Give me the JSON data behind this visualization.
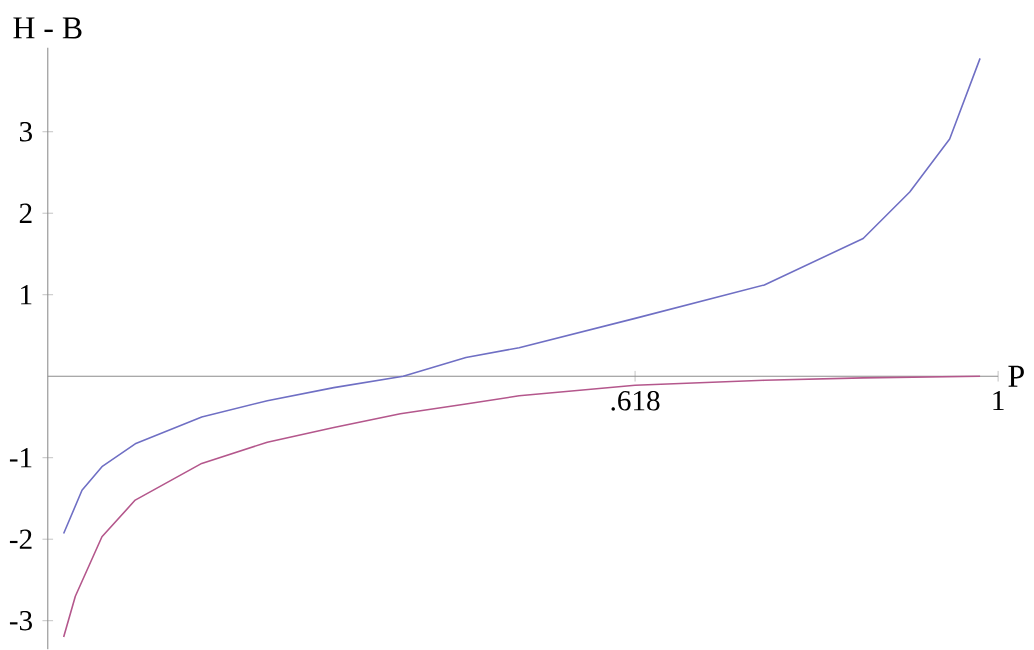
{
  "chart_data": {
    "type": "line",
    "xlabel": "P",
    "ylabel": "H - B",
    "xlim": [
      0,
      1
    ],
    "ylim": [
      -3.35,
      4.03
    ],
    "xticks": [
      {
        "value": 0.618,
        "label": ".618"
      },
      1
    ],
    "yticks": [
      -3,
      -2,
      -1,
      1,
      2,
      3
    ],
    "line_style": "solid",
    "marker": "none",
    "series": [
      {
        "color": "#6f6fc4",
        "x": [
          0.0167,
          0.036,
          0.057,
          0.092,
          0.162,
          0.231,
          0.301,
          0.374,
          0.44,
          0.496,
          0.618,
          0.754,
          0.858,
          0.907,
          0.949,
          0.981
        ],
        "values": [
          -1.93,
          -1.4,
          -1.11,
          -0.83,
          -0.5,
          -0.3,
          -0.14,
          0,
          0.23,
          0.35,
          0.71,
          1.12,
          1.69,
          2.26,
          2.91,
          3.9
        ]
      },
      {
        "color": "#b4578c",
        "x": [
          0.0167,
          0.029,
          0.057,
          0.092,
          0.162,
          0.231,
          0.301,
          0.371,
          0.44,
          0.496,
          0.618,
          0.754,
          0.858,
          0.981
        ],
        "values": [
          -3.2,
          -2.7,
          -1.97,
          -1.52,
          -1.07,
          -0.81,
          -0.63,
          -0.46,
          -0.34,
          -0.24,
          -0.11,
          -0.05,
          -0.02,
          0
        ]
      }
    ]
  }
}
